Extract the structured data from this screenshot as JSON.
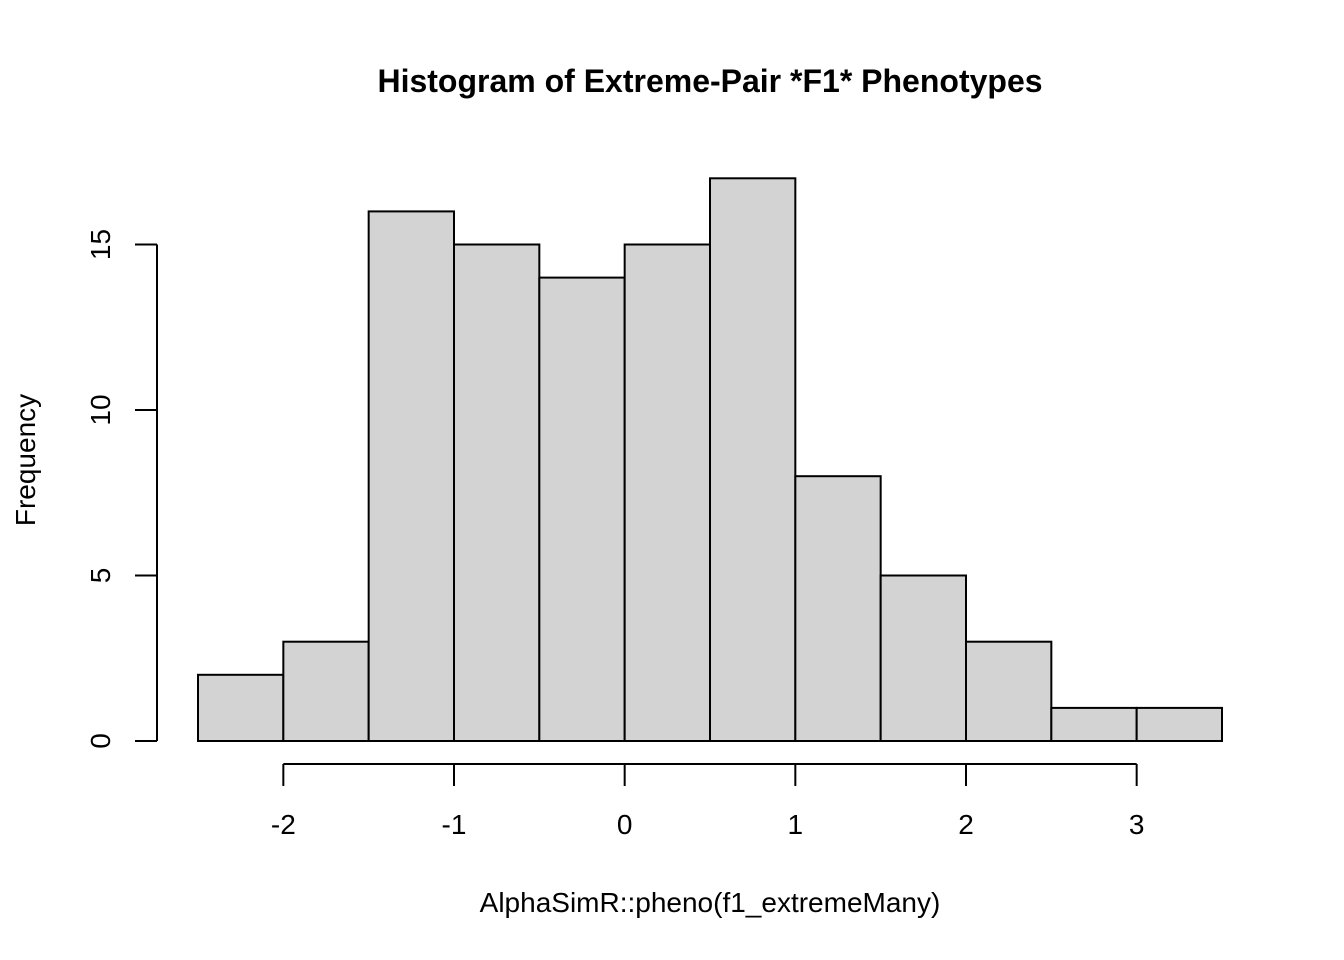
{
  "chart_data": {
    "type": "bar",
    "title": "Histogram of Extreme-Pair *F1* Phenotypes",
    "xlabel": "AlphaSimR::pheno(f1_extremeMany)",
    "ylabel": "Frequency",
    "bins": [
      {
        "start": -2.5,
        "end": -2.0,
        "count": 2
      },
      {
        "start": -2.0,
        "end": -1.5,
        "count": 3
      },
      {
        "start": -1.5,
        "end": -1.0,
        "count": 16
      },
      {
        "start": -1.0,
        "end": -0.5,
        "count": 15
      },
      {
        "start": -0.5,
        "end": 0.0,
        "count": 14
      },
      {
        "start": 0.0,
        "end": 0.5,
        "count": 15
      },
      {
        "start": 0.5,
        "end": 1.0,
        "count": 17
      },
      {
        "start": 1.0,
        "end": 1.5,
        "count": 8
      },
      {
        "start": 1.5,
        "end": 2.0,
        "count": 5
      },
      {
        "start": 2.0,
        "end": 2.5,
        "count": 3
      },
      {
        "start": 2.5,
        "end": 3.0,
        "count": 1
      },
      {
        "start": 3.0,
        "end": 3.5,
        "count": 1
      }
    ],
    "xticks": [
      -2,
      -1,
      0,
      1,
      2,
      3
    ],
    "xtick_labels": [
      "-2",
      "-1",
      "0",
      "1",
      "2",
      "3"
    ],
    "yticks": [
      0,
      5,
      10,
      15
    ],
    "ytick_labels": [
      "0",
      "5",
      "10",
      "15"
    ],
    "xlim": [
      -2.5,
      3.5
    ],
    "ylim": [
      0,
      17
    ],
    "grid": false,
    "colors": {
      "bar_fill": "#d3d3d3",
      "bar_stroke": "#000000"
    }
  }
}
